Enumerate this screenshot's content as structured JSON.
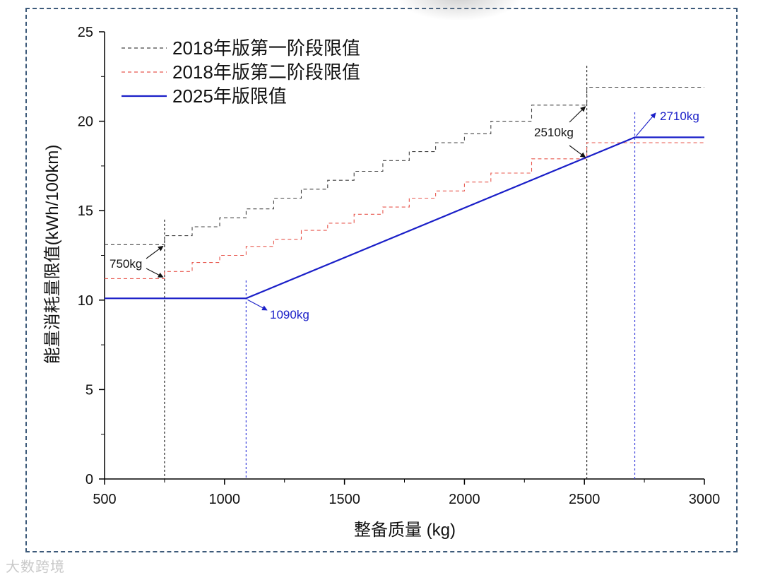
{
  "chart_data": {
    "type": "line",
    "xlabel": "整备质量 (kg)",
    "ylabel": "能量消耗量限值(kWh/100km)",
    "xlim": [
      500,
      3000
    ],
    "ylim": [
      0,
      25
    ],
    "xticks": [
      500,
      1000,
      1500,
      2000,
      2500,
      3000
    ],
    "yticks": [
      0,
      5,
      10,
      15,
      20,
      25
    ],
    "legend_position": "top-left",
    "series": [
      {
        "name": "2018年版第一阶段限值",
        "style": "dashed",
        "color": "#444444",
        "points": [
          [
            500,
            13.1
          ],
          [
            750,
            13.1
          ],
          [
            750,
            13.6
          ],
          [
            865,
            13.6
          ],
          [
            865,
            14.1
          ],
          [
            980,
            14.1
          ],
          [
            980,
            14.6
          ],
          [
            1090,
            14.6
          ],
          [
            1090,
            15.1
          ],
          [
            1205,
            15.1
          ],
          [
            1205,
            15.7
          ],
          [
            1320,
            15.7
          ],
          [
            1320,
            16.2
          ],
          [
            1430,
            16.2
          ],
          [
            1430,
            16.7
          ],
          [
            1540,
            16.7
          ],
          [
            1540,
            17.2
          ],
          [
            1660,
            17.2
          ],
          [
            1660,
            17.8
          ],
          [
            1770,
            17.8
          ],
          [
            1770,
            18.3
          ],
          [
            1880,
            18.3
          ],
          [
            1880,
            18.8
          ],
          [
            2000,
            18.8
          ],
          [
            2000,
            19.3
          ],
          [
            2110,
            19.3
          ],
          [
            2110,
            20.0
          ],
          [
            2280,
            20.0
          ],
          [
            2280,
            20.9
          ],
          [
            2510,
            20.9
          ],
          [
            2510,
            21.9
          ],
          [
            3000,
            21.9
          ]
        ]
      },
      {
        "name": "2018年版第二阶段限值",
        "style": "dashed",
        "color": "#e8584f",
        "points": [
          [
            500,
            11.2
          ],
          [
            750,
            11.2
          ],
          [
            750,
            11.6
          ],
          [
            865,
            11.6
          ],
          [
            865,
            12.1
          ],
          [
            980,
            12.1
          ],
          [
            980,
            12.5
          ],
          [
            1090,
            12.5
          ],
          [
            1090,
            13.0
          ],
          [
            1205,
            13.0
          ],
          [
            1205,
            13.4
          ],
          [
            1320,
            13.4
          ],
          [
            1320,
            13.9
          ],
          [
            1430,
            13.9
          ],
          [
            1430,
            14.3
          ],
          [
            1540,
            14.3
          ],
          [
            1540,
            14.8
          ],
          [
            1660,
            14.8
          ],
          [
            1660,
            15.2
          ],
          [
            1770,
            15.2
          ],
          [
            1770,
            15.7
          ],
          [
            1880,
            15.7
          ],
          [
            1880,
            16.1
          ],
          [
            2000,
            16.1
          ],
          [
            2000,
            16.6
          ],
          [
            2110,
            16.6
          ],
          [
            2110,
            17.1
          ],
          [
            2280,
            17.1
          ],
          [
            2280,
            17.9
          ],
          [
            2510,
            17.9
          ],
          [
            2510,
            18.8
          ],
          [
            3000,
            18.8
          ]
        ]
      },
      {
        "name": "2025年版限值",
        "style": "solid",
        "color": "#1a1fc8",
        "points": [
          [
            500,
            10.1
          ],
          [
            1090,
            10.1
          ],
          [
            2710,
            19.1
          ],
          [
            3000,
            19.1
          ]
        ]
      }
    ],
    "annotations": [
      {
        "text": "750kg",
        "x": 750,
        "color": "#111111"
      },
      {
        "text": "1090kg",
        "x": 1090,
        "color": "#1a1fc8"
      },
      {
        "text": "2510kg",
        "x": 2510,
        "color": "#111111"
      },
      {
        "text": "2710kg",
        "x": 2710,
        "color": "#1a1fc8"
      }
    ]
  },
  "watermark": "大数跨境"
}
